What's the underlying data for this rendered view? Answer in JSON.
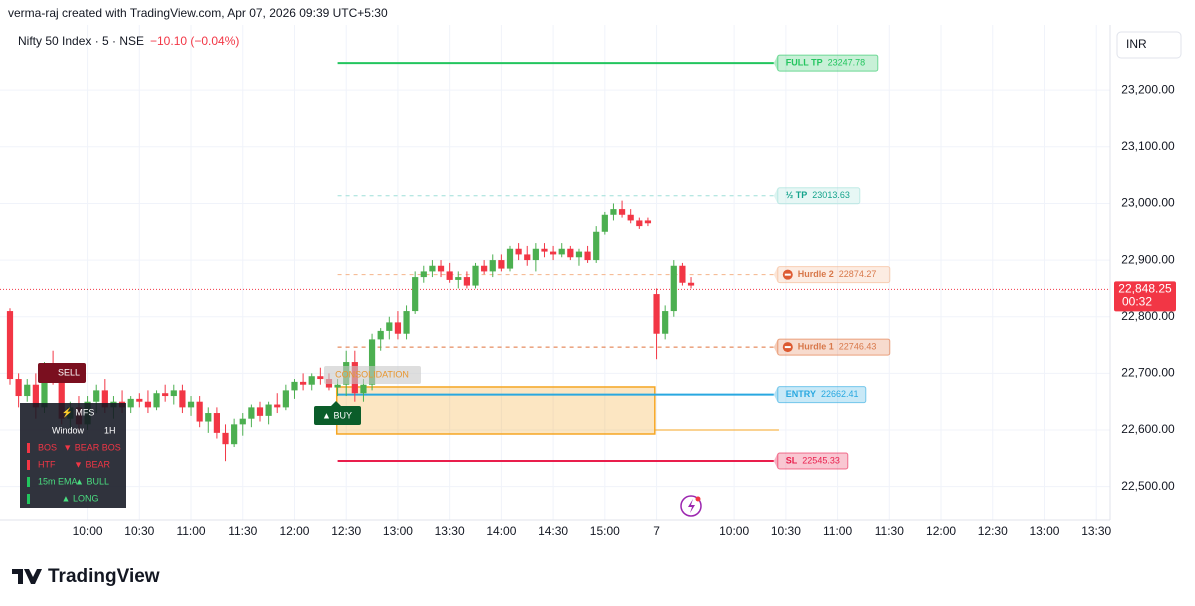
{
  "header": {
    "credit": "verma-raj created with TradingView.com, Apr 07, 2026 09:39 UTC+5:30",
    "symbol": "Nifty 50 Index · 5 · NSE",
    "change": "−10.10 (−0.04%)",
    "currency": "INR",
    "brand": "TradingView"
  },
  "chart_data": {
    "type": "candlestick",
    "x": [
      0,
      1,
      2,
      3,
      4,
      5,
      6,
      7,
      8,
      9,
      10,
      11,
      12,
      13,
      14,
      15,
      16,
      17,
      18,
      19,
      20,
      21,
      22,
      23,
      24,
      25,
      26,
      27,
      28,
      29,
      30,
      31,
      32,
      33,
      34,
      35,
      36,
      37,
      38,
      39,
      40,
      41,
      42,
      43,
      44,
      45,
      46,
      47,
      48,
      49,
      50,
      51,
      52,
      53,
      54,
      55,
      56,
      57,
      58,
      59,
      60,
      61,
      62,
      63,
      64,
      65,
      66,
      67,
      68,
      69,
      70,
      71,
      72,
      73,
      74,
      75,
      76,
      77,
      78,
      79
    ],
    "open": [
      22810,
      22690,
      22660,
      22680,
      22640,
      22710,
      22690,
      22620,
      22640,
      22610,
      22650,
      22670,
      22640,
      22650,
      22640,
      22655,
      22650,
      22640,
      22665,
      22660,
      22670,
      22640,
      22650,
      22615,
      22630,
      22595,
      22575,
      22610,
      22620,
      22640,
      22625,
      22645,
      22640,
      22670,
      22685,
      22680,
      22695,
      22690,
      22675,
      22680,
      22720,
      22665,
      22680,
      22760,
      22775,
      22790,
      22770,
      22810,
      22870,
      22880,
      22890,
      22880,
      22865,
      22870,
      22855,
      22890,
      22880,
      22900,
      22885,
      22920,
      22910,
      22900,
      22920,
      22915,
      22910,
      22920,
      22905,
      22915,
      22900,
      22950,
      22980,
      22990,
      22980,
      22970,
      22970,
      22840,
      22770,
      22810,
      22890,
      22860
    ],
    "high": [
      22815,
      22700,
      22690,
      22700,
      22720,
      22740,
      22700,
      22650,
      22660,
      22660,
      22680,
      22690,
      22660,
      22670,
      22660,
      22665,
      22670,
      22670,
      22680,
      22680,
      22680,
      22660,
      22660,
      22640,
      22640,
      22610,
      22620,
      22630,
      22645,
      22650,
      22650,
      22665,
      22680,
      22690,
      22700,
      22700,
      22710,
      22700,
      22690,
      22740,
      22740,
      22690,
      22770,
      22780,
      22800,
      22810,
      22820,
      22880,
      22890,
      22900,
      22900,
      22895,
      22880,
      22880,
      22895,
      22900,
      22910,
      22910,
      22925,
      22930,
      22925,
      22930,
      22930,
      22925,
      22930,
      22925,
      22920,
      22925,
      22960,
      22985,
      23000,
      23005,
      22990,
      22975,
      22975,
      22850,
      22820,
      22900,
      22895,
      22870
    ],
    "low": [
      22680,
      22640,
      22650,
      22620,
      22630,
      22680,
      22610,
      22600,
      22600,
      22600,
      22630,
      22630,
      22620,
      22630,
      22630,
      22640,
      22630,
      22635,
      22650,
      22645,
      22630,
      22625,
      22605,
      22595,
      22585,
      22545,
      22570,
      22590,
      22605,
      22615,
      22610,
      22630,
      22635,
      22655,
      22670,
      22670,
      22680,
      22670,
      22660,
      22660,
      22650,
      22650,
      22670,
      22740,
      22760,
      22760,
      22760,
      22805,
      22860,
      22870,
      22870,
      22860,
      22850,
      22850,
      22850,
      22875,
      22870,
      22880,
      22880,
      22900,
      22890,
      22880,
      22905,
      22900,
      22905,
      22900,
      22890,
      22895,
      22895,
      22945,
      22970,
      22975,
      22965,
      22955,
      22960,
      22725,
      22760,
      22800,
      22855,
      22850
    ],
    "close": [
      22690,
      22660,
      22680,
      22640,
      22710,
      22690,
      22620,
      22640,
      22610,
      22650,
      22670,
      22640,
      22650,
      22640,
      22655,
      22650,
      22640,
      22665,
      22660,
      22670,
      22640,
      22650,
      22615,
      22630,
      22595,
      22575,
      22610,
      22620,
      22640,
      22625,
      22645,
      22640,
      22670,
      22685,
      22680,
      22695,
      22690,
      22675,
      22680,
      22720,
      22665,
      22680,
      22760,
      22775,
      22790,
      22770,
      22810,
      22870,
      22880,
      22890,
      22880,
      22865,
      22870,
      22855,
      22890,
      22880,
      22900,
      22885,
      22920,
      22910,
      22900,
      22920,
      22915,
      22910,
      22920,
      22905,
      22915,
      22900,
      22950,
      22980,
      22990,
      22980,
      22970,
      22960,
      22965,
      22770,
      22810,
      22890,
      22860,
      22855
    ],
    "up_color": "#4caf50",
    "down_color": "#f23645",
    "xlim": [
      -1.16,
      127.6
    ],
    "xticks": [
      {
        "value": 9,
        "label": "10:00"
      },
      {
        "value": 15,
        "label": "10:30"
      },
      {
        "value": 21,
        "label": "11:00"
      },
      {
        "value": 27,
        "label": "11:30"
      },
      {
        "value": 33,
        "label": "12:00"
      },
      {
        "value": 39,
        "label": "12:30"
      },
      {
        "value": 45,
        "label": "13:00"
      },
      {
        "value": 51,
        "label": "13:30"
      },
      {
        "value": 57,
        "label": "14:00"
      },
      {
        "value": 63,
        "label": "14:30"
      },
      {
        "value": 69,
        "label": "15:00"
      },
      {
        "value": 75,
        "label": "7"
      },
      {
        "value": 84,
        "label": "10:00"
      },
      {
        "value": 90,
        "label": "10:30"
      },
      {
        "value": 96,
        "label": "11:00"
      },
      {
        "value": 102,
        "label": "11:30"
      },
      {
        "value": 108,
        "label": "12:00"
      },
      {
        "value": 114,
        "label": "12:30"
      },
      {
        "value": 120,
        "label": "13:00"
      },
      {
        "value": 126,
        "label": "13:30"
      }
    ],
    "ylim": [
      22450,
      23315
    ],
    "yticks": [
      {
        "value": 22500,
        "label": "22,500.00"
      },
      {
        "value": 22600,
        "label": "22,600.00"
      },
      {
        "value": 22700,
        "label": "22,700.00"
      },
      {
        "value": 22800,
        "label": "22,800.00"
      },
      {
        "value": 22900,
        "label": "22,900.00"
      },
      {
        "value": 23000,
        "label": "23,000.00"
      },
      {
        "value": 23100,
        "label": "23,100.00"
      },
      {
        "value": 23200,
        "label": "23,200.00"
      }
    ],
    "grid": true,
    "levels": [
      {
        "name": "FULL TP",
        "value": 23247.78,
        "color": "#22c55e",
        "style": "solid"
      },
      {
        "name": "½ TP",
        "value": 23013.63,
        "color": "#9edfd8",
        "style": "dashed"
      },
      {
        "name": "Hurdle 2",
        "value": 22874.27,
        "color": "#f5b48a",
        "style": "dashed"
      },
      {
        "name": "Hurdle 1",
        "value": 22746.43,
        "color": "#e0703a",
        "style": "dashed"
      },
      {
        "name": "ENTRY",
        "value": 22662.41,
        "color": "#29a8e0",
        "style": "solid"
      },
      {
        "name": "SL",
        "value": 22545.33,
        "color": "#e91e4c",
        "style": "solid"
      }
    ],
    "zone": {
      "top": 22676,
      "bottom": 22593,
      "color": "#f5a623"
    },
    "last_price": {
      "value": 22848.25,
      "label": "22,848.25",
      "countdown": "00:32",
      "color": "#f23645"
    },
    "annotations": {
      "sell": "SELL",
      "consolidation": "CONSOLIDATION",
      "buy": "▲ BUY"
    },
    "panel": {
      "title": "⚡ MFS",
      "rows": [
        [
          "Window",
          "1H"
        ],
        [
          "BOS",
          "▼ BEAR BOS"
        ],
        [
          "HTF",
          "▼ BEAR"
        ],
        [
          "15m EMA",
          "▲ BULL"
        ],
        [
          "▲ LONG"
        ]
      ]
    }
  }
}
